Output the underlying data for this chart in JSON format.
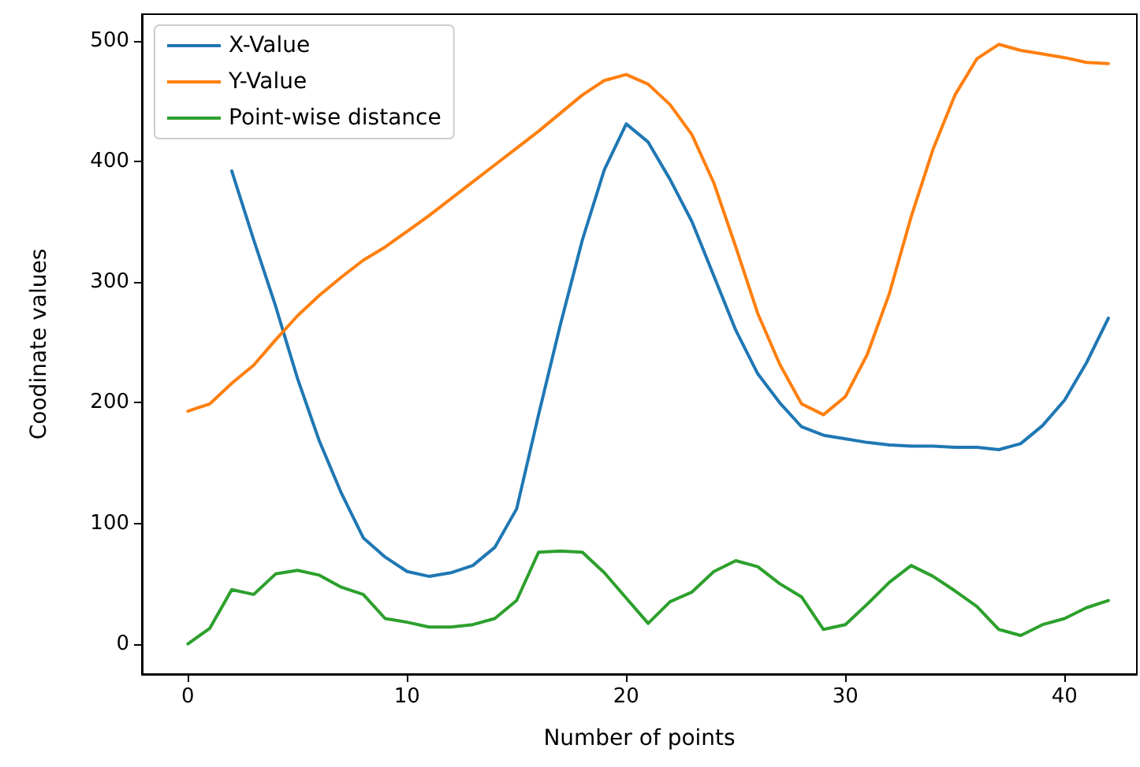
{
  "chart_data": {
    "type": "line",
    "xlabel": "Number of points",
    "ylabel": "Coodinate values",
    "x": [
      0,
      1,
      2,
      3,
      4,
      5,
      6,
      7,
      8,
      9,
      10,
      11,
      12,
      13,
      14,
      15,
      16,
      17,
      18,
      19,
      20,
      21,
      22,
      23,
      24,
      25,
      26,
      27,
      28,
      29,
      30,
      31,
      32,
      33,
      34,
      35,
      36,
      37,
      38,
      39,
      40,
      41,
      42
    ],
    "series": [
      {
        "name": "X-Value",
        "color": "#1f77b4",
        "values": [
          null,
          null,
          392,
          335,
          280,
          220,
          168,
          125,
          88,
          72,
          60,
          56,
          59,
          65,
          80,
          112,
          190,
          265,
          335,
          393,
          431,
          416,
          385,
          350,
          305,
          260,
          224,
          200,
          180,
          173,
          170,
          167,
          165,
          164,
          164,
          163,
          163,
          161,
          166,
          181,
          202,
          233,
          270
        ]
      },
      {
        "name": "Y-Value",
        "color": "#ff7f0e",
        "values": [
          193,
          199,
          216,
          231,
          252,
          272,
          289,
          304,
          318,
          329,
          342,
          355,
          369,
          383,
          397,
          411,
          425,
          440,
          455,
          467,
          472,
          464,
          447,
          422,
          382,
          329,
          274,
          232,
          199,
          190,
          205,
          240,
          290,
          354,
          410,
          455,
          485,
          497,
          492,
          489,
          486,
          482,
          481
        ]
      },
      {
        "name": "Point-wise distance",
        "color": "#2ca02c",
        "values": [
          0,
          13,
          45,
          41,
          58,
          61,
          57,
          47,
          41,
          21,
          18,
          14,
          14,
          16,
          21,
          36,
          76,
          77,
          76,
          59,
          38,
          17,
          35,
          43,
          60,
          69,
          64,
          50,
          39,
          12,
          16,
          33,
          51,
          65,
          56,
          44,
          31,
          12,
          7,
          16,
          21,
          30,
          36
        ]
      }
    ],
    "xlim": [
      -2.1,
      43.3
    ],
    "xticks": [
      0,
      10,
      20,
      30,
      40
    ],
    "ylim": [
      -25,
      522
    ],
    "yticks": [
      0,
      100,
      200,
      300,
      400,
      500
    ],
    "grid": false,
    "legend": "top left",
    "marker": "none",
    "line_style": "solid"
  }
}
